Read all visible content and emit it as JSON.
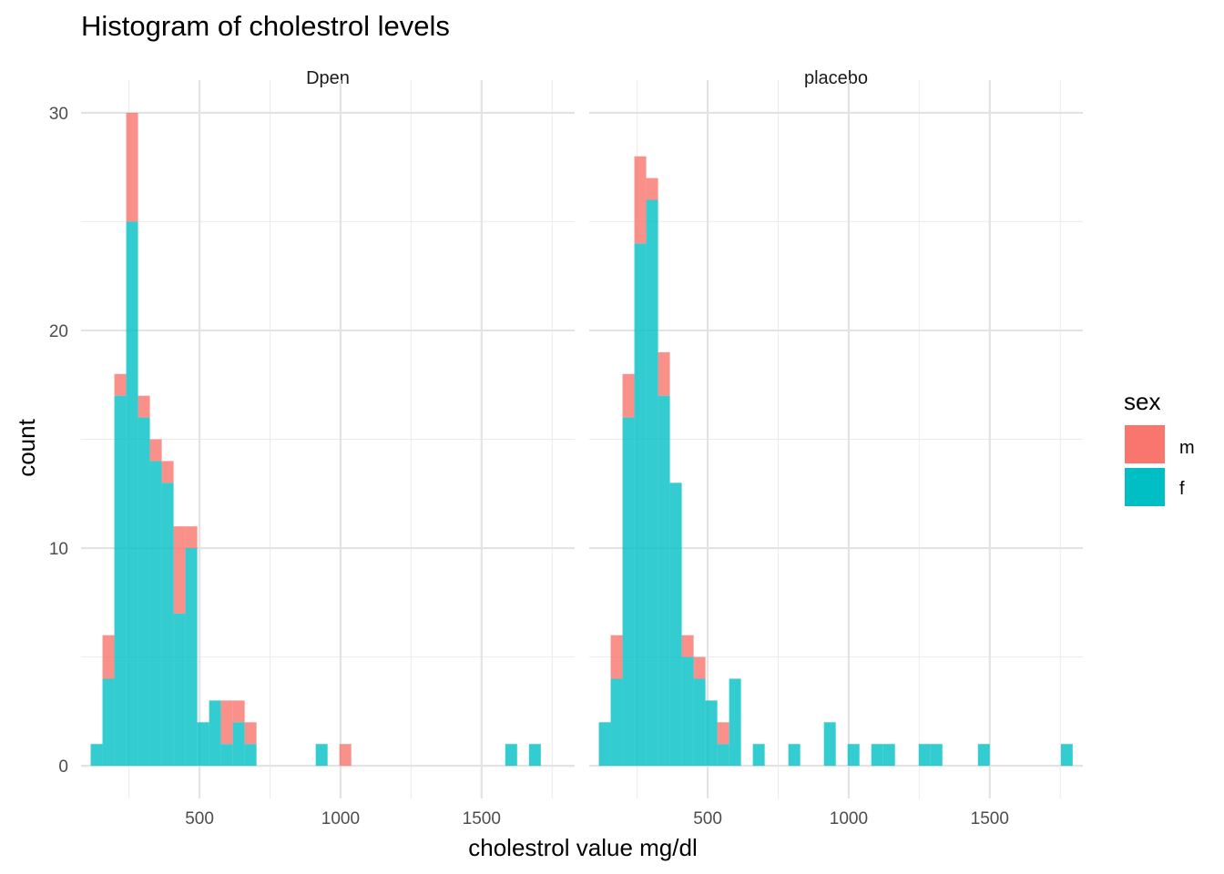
{
  "chart_data": {
    "type": "bar",
    "subtype": "stacked-histogram-faceted",
    "title": "Histogram of cholestrol levels",
    "xlabel": "cholestrol value mg/dl",
    "ylabel": "count",
    "xlim": [
      80,
      1830
    ],
    "ylim": [
      -1.5,
      31.5
    ],
    "x_ticks": [
      500,
      1000,
      1500
    ],
    "y_ticks": [
      0,
      10,
      20,
      30
    ],
    "grid": true,
    "legend": {
      "title": "sex",
      "position": "right",
      "entries": [
        {
          "label": "m",
          "color": "#F8766D"
        },
        {
          "label": "f",
          "color": "#00BFC4"
        }
      ]
    },
    "facets": [
      {
        "label": "Dpen",
        "bins": [
          {
            "x0": 114,
            "x1": 156,
            "f": 1,
            "m": 0
          },
          {
            "x0": 156,
            "x1": 198,
            "f": 4,
            "m": 2
          },
          {
            "x0": 198,
            "x1": 240,
            "f": 17,
            "m": 1
          },
          {
            "x0": 240,
            "x1": 282,
            "f": 25,
            "m": 5
          },
          {
            "x0": 282,
            "x1": 324,
            "f": 16,
            "m": 1
          },
          {
            "x0": 324,
            "x1": 366,
            "f": 14,
            "m": 1
          },
          {
            "x0": 366,
            "x1": 408,
            "f": 13,
            "m": 1
          },
          {
            "x0": 408,
            "x1": 450,
            "f": 7,
            "m": 4
          },
          {
            "x0": 450,
            "x1": 492,
            "f": 10,
            "m": 1
          },
          {
            "x0": 492,
            "x1": 534,
            "f": 2,
            "m": 0
          },
          {
            "x0": 534,
            "x1": 576,
            "f": 3,
            "m": 0
          },
          {
            "x0": 576,
            "x1": 618,
            "f": 1,
            "m": 2
          },
          {
            "x0": 618,
            "x1": 660,
            "f": 2,
            "m": 1
          },
          {
            "x0": 660,
            "x1": 702,
            "f": 1,
            "m": 1
          },
          {
            "x0": 912,
            "x1": 954,
            "f": 1,
            "m": 0
          },
          {
            "x0": 996,
            "x1": 1038,
            "f": 0,
            "m": 1
          },
          {
            "x0": 1584,
            "x1": 1626,
            "f": 1,
            "m": 0
          },
          {
            "x0": 1668,
            "x1": 1710,
            "f": 1,
            "m": 0
          }
        ]
      },
      {
        "label": "placebo",
        "bins": [
          {
            "x0": 114,
            "x1": 156,
            "f": 2,
            "m": 0
          },
          {
            "x0": 156,
            "x1": 198,
            "f": 4,
            "m": 2
          },
          {
            "x0": 198,
            "x1": 240,
            "f": 16,
            "m": 2
          },
          {
            "x0": 240,
            "x1": 282,
            "f": 24,
            "m": 4
          },
          {
            "x0": 282,
            "x1": 324,
            "f": 26,
            "m": 1
          },
          {
            "x0": 324,
            "x1": 366,
            "f": 17,
            "m": 2
          },
          {
            "x0": 366,
            "x1": 408,
            "f": 13,
            "m": 0
          },
          {
            "x0": 408,
            "x1": 450,
            "f": 5,
            "m": 1
          },
          {
            "x0": 450,
            "x1": 492,
            "f": 4,
            "m": 1
          },
          {
            "x0": 492,
            "x1": 534,
            "f": 3,
            "m": 0
          },
          {
            "x0": 534,
            "x1": 576,
            "f": 1,
            "m": 1
          },
          {
            "x0": 576,
            "x1": 618,
            "f": 4,
            "m": 0
          },
          {
            "x0": 660,
            "x1": 702,
            "f": 1,
            "m": 0
          },
          {
            "x0": 786,
            "x1": 828,
            "f": 1,
            "m": 0
          },
          {
            "x0": 912,
            "x1": 954,
            "f": 2,
            "m": 0
          },
          {
            "x0": 996,
            "x1": 1038,
            "f": 1,
            "m": 0
          },
          {
            "x0": 1080,
            "x1": 1122,
            "f": 1,
            "m": 0
          },
          {
            "x0": 1122,
            "x1": 1164,
            "f": 1,
            "m": 0
          },
          {
            "x0": 1248,
            "x1": 1290,
            "f": 1,
            "m": 0
          },
          {
            "x0": 1290,
            "x1": 1332,
            "f": 1,
            "m": 0
          },
          {
            "x0": 1458,
            "x1": 1500,
            "f": 1,
            "m": 0
          },
          {
            "x0": 1752,
            "x1": 1794,
            "f": 1,
            "m": 0
          }
        ]
      }
    ]
  }
}
